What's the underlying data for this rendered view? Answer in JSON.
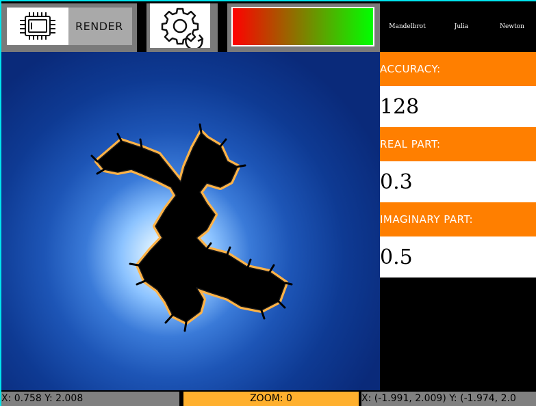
{
  "toolbar": {
    "render_label": "RENDER",
    "render_icon": "processor-chip-icon",
    "settings_icon": "gear-refresh-icon",
    "gradient_colors": [
      "#ff0000",
      "#00ff00"
    ]
  },
  "fractal_tabs": [
    "Mandelbrot",
    "Julia",
    "Newton"
  ],
  "params": {
    "accuracy": {
      "label": "ACCURACY:",
      "value": "128"
    },
    "real": {
      "label": "REAL PART:",
      "value": "0.3"
    },
    "imaginary": {
      "label": "IMAGINARY PART:",
      "value": "0.5"
    }
  },
  "status": {
    "coords": "X: 0.758 Y: 2.008",
    "zoom": "ZOOM: 0",
    "range": "X: (-1.991, 2.009) Y: (-1.974, 2.0"
  },
  "colors": {
    "accent_orange": "#ff7f00",
    "zoom_yellow": "#ffb02e",
    "panel_gray": "#7a7a7a",
    "frame_cyan": "#00e5ee",
    "fractal_blue": "#0e3a93"
  }
}
